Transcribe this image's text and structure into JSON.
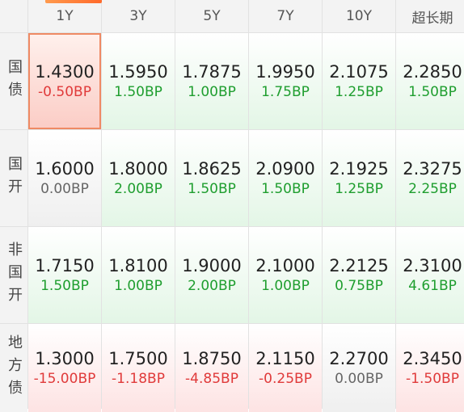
{
  "columns": [
    "1Y",
    "3Y",
    "5Y",
    "7Y",
    "10Y",
    "超长期"
  ],
  "rows": [
    {
      "label": "国债",
      "cells": [
        {
          "rate": "1.4300",
          "change": "-0.50BP",
          "dir": "down",
          "selected": true
        },
        {
          "rate": "1.5950",
          "change": "1.50BP",
          "dir": "up"
        },
        {
          "rate": "1.7875",
          "change": "1.00BP",
          "dir": "up"
        },
        {
          "rate": "1.9950",
          "change": "1.75BP",
          "dir": "up"
        },
        {
          "rate": "2.1075",
          "change": "1.25BP",
          "dir": "up"
        },
        {
          "rate": "2.2850",
          "change": "1.50BP",
          "dir": "up"
        }
      ]
    },
    {
      "label": "国开",
      "cells": [
        {
          "rate": "1.6000",
          "change": "0.00BP",
          "dir": "flat"
        },
        {
          "rate": "1.8000",
          "change": "2.00BP",
          "dir": "up"
        },
        {
          "rate": "1.8625",
          "change": "1.50BP",
          "dir": "up"
        },
        {
          "rate": "2.0900",
          "change": "1.50BP",
          "dir": "up"
        },
        {
          "rate": "2.1925",
          "change": "1.25BP",
          "dir": "up"
        },
        {
          "rate": "2.3275",
          "change": "2.25BP",
          "dir": "up"
        }
      ]
    },
    {
      "label": "非国开",
      "cells": [
        {
          "rate": "1.7150",
          "change": "1.50BP",
          "dir": "up"
        },
        {
          "rate": "1.8100",
          "change": "1.00BP",
          "dir": "up"
        },
        {
          "rate": "1.9000",
          "change": "2.00BP",
          "dir": "up"
        },
        {
          "rate": "2.1000",
          "change": "1.00BP",
          "dir": "up"
        },
        {
          "rate": "2.2125",
          "change": "0.75BP",
          "dir": "up"
        },
        {
          "rate": "2.3100",
          "change": "4.61BP",
          "dir": "up"
        }
      ]
    },
    {
      "label": "地方债",
      "cells": [
        {
          "rate": "1.3000",
          "change": "-15.00BP",
          "dir": "down"
        },
        {
          "rate": "1.7500",
          "change": "-1.18BP",
          "dir": "down"
        },
        {
          "rate": "1.8750",
          "change": "-4.85BP",
          "dir": "down"
        },
        {
          "rate": "2.1150",
          "change": "-0.25BP",
          "dir": "down"
        },
        {
          "rate": "2.2700",
          "change": "0.00BP",
          "dir": "flat"
        },
        {
          "rate": "2.3450",
          "change": "-1.50BP",
          "dir": "down"
        }
      ]
    }
  ]
}
